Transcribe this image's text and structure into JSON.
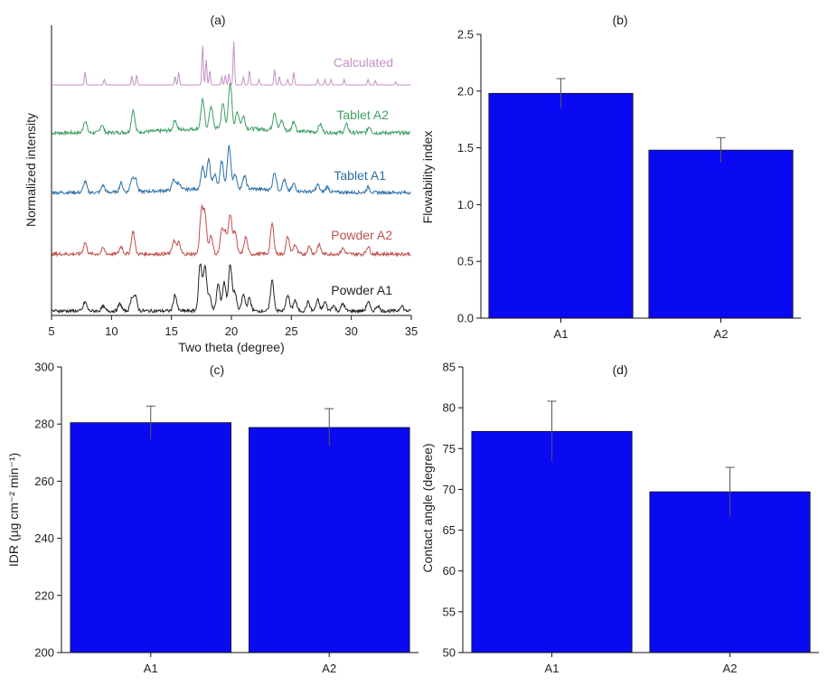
{
  "chart_data": [
    {
      "panel_label": "(a)",
      "type": "line",
      "xlabel": "Two theta (degree)",
      "ylabel": "Normalized intensity",
      "xlim": [
        5,
        35
      ],
      "xticks": [
        5,
        10,
        15,
        20,
        25,
        30,
        35
      ],
      "series": [
        {
          "name": "Calculated",
          "color": "#c48fc4",
          "peaks": [
            [
              7.8,
              0.45
            ],
            [
              9.4,
              0.2
            ],
            [
              11.7,
              0.3
            ],
            [
              12.1,
              0.35
            ],
            [
              15.3,
              0.3
            ],
            [
              15.6,
              0.45
            ],
            [
              17.6,
              1.4
            ],
            [
              17.9,
              0.9
            ],
            [
              18.2,
              0.5
            ],
            [
              19.2,
              0.3
            ],
            [
              19.5,
              0.35
            ],
            [
              19.8,
              0.4
            ],
            [
              20.2,
              1.55
            ],
            [
              21.0,
              0.3
            ],
            [
              21.5,
              0.5
            ],
            [
              22.3,
              0.2
            ],
            [
              23.6,
              0.55
            ],
            [
              24.0,
              0.3
            ],
            [
              24.7,
              0.2
            ],
            [
              25.2,
              0.45
            ],
            [
              27.2,
              0.2
            ],
            [
              27.8,
              0.2
            ],
            [
              28.3,
              0.2
            ],
            [
              29.4,
              0.2
            ],
            [
              31.4,
              0.2
            ],
            [
              32.0,
              0.15
            ],
            [
              33.7,
              0.12
            ]
          ]
        },
        {
          "name": "Tablet A2",
          "color": "#3f9e63",
          "peaks": [
            [
              7.8,
              0.3
            ],
            [
              9.2,
              0.2
            ],
            [
              11.8,
              0.55
            ],
            [
              15.3,
              0.25
            ],
            [
              17.6,
              0.7
            ],
            [
              18.3,
              0.55
            ],
            [
              19.3,
              0.6
            ],
            [
              19.9,
              1.1
            ],
            [
              20.5,
              0.4
            ],
            [
              21.0,
              0.3
            ],
            [
              23.6,
              0.45
            ],
            [
              24.2,
              0.25
            ],
            [
              25.2,
              0.25
            ],
            [
              27.4,
              0.2
            ],
            [
              29.6,
              0.2
            ],
            [
              31.5,
              0.15
            ]
          ]
        },
        {
          "name": "Tablet A1",
          "color": "#2c6fa8",
          "peaks": [
            [
              7.8,
              0.3
            ],
            [
              9.3,
              0.2
            ],
            [
              10.8,
              0.25
            ],
            [
              11.7,
              0.35
            ],
            [
              12.0,
              0.35
            ],
            [
              15.2,
              0.3
            ],
            [
              15.6,
              0.2
            ],
            [
              17.6,
              0.6
            ],
            [
              18.1,
              0.8
            ],
            [
              18.6,
              0.4
            ],
            [
              19.2,
              0.75
            ],
            [
              19.8,
              1.2
            ],
            [
              20.3,
              0.4
            ],
            [
              21.1,
              0.35
            ],
            [
              23.6,
              0.5
            ],
            [
              24.4,
              0.3
            ],
            [
              25.2,
              0.2
            ],
            [
              27.2,
              0.2
            ],
            [
              28.0,
              0.15
            ],
            [
              31.4,
              0.15
            ]
          ]
        },
        {
          "name": "Powder A2",
          "color": "#c0504d",
          "peaks": [
            [
              7.8,
              0.3
            ],
            [
              9.3,
              0.15
            ],
            [
              10.8,
              0.2
            ],
            [
              11.8,
              0.6
            ],
            [
              15.2,
              0.35
            ],
            [
              15.6,
              0.3
            ],
            [
              17.5,
              1.1
            ],
            [
              17.8,
              1.0
            ],
            [
              18.3,
              0.5
            ],
            [
              19.2,
              0.6
            ],
            [
              19.5,
              0.55
            ],
            [
              19.9,
              1.05
            ],
            [
              20.3,
              0.6
            ],
            [
              21.2,
              0.45
            ],
            [
              23.4,
              0.8
            ],
            [
              24.7,
              0.45
            ],
            [
              25.3,
              0.25
            ],
            [
              26.5,
              0.2
            ],
            [
              27.3,
              0.25
            ],
            [
              29.3,
              0.15
            ],
            [
              31.4,
              0.2
            ]
          ]
        },
        {
          "name": "Powder A1",
          "color": "#222222",
          "peaks": [
            [
              7.8,
              0.25
            ],
            [
              9.3,
              0.12
            ],
            [
              10.7,
              0.2
            ],
            [
              11.7,
              0.35
            ],
            [
              12.0,
              0.38
            ],
            [
              15.3,
              0.45
            ],
            [
              17.4,
              1.3
            ],
            [
              17.8,
              1.25
            ],
            [
              18.2,
              0.4
            ],
            [
              18.9,
              0.75
            ],
            [
              19.4,
              0.8
            ],
            [
              19.9,
              1.3
            ],
            [
              20.3,
              0.5
            ],
            [
              21.0,
              0.45
            ],
            [
              21.5,
              0.35
            ],
            [
              23.4,
              0.85
            ],
            [
              24.7,
              0.45
            ],
            [
              25.3,
              0.3
            ],
            [
              26.4,
              0.25
            ],
            [
              27.2,
              0.3
            ],
            [
              27.8,
              0.25
            ],
            [
              28.5,
              0.15
            ],
            [
              29.3,
              0.2
            ],
            [
              31.4,
              0.25
            ],
            [
              32.2,
              0.15
            ],
            [
              34.2,
              0.15
            ]
          ]
        }
      ]
    },
    {
      "panel_label": "(b)",
      "type": "bar",
      "categories": [
        "A1",
        "A2"
      ],
      "values": [
        1.98,
        1.48
      ],
      "errors": [
        0.13,
        0.11
      ],
      "ylabel": "Flowability index",
      "xlabel": "",
      "ylim": [
        0.0,
        2.5
      ],
      "yticks": [
        "0.0",
        "0.5",
        "1.0",
        "1.5",
        "2.0",
        "2.5"
      ],
      "bar_color": "#0a0af2"
    },
    {
      "panel_label": "(c)",
      "type": "bar",
      "categories": [
        "A1",
        "A2"
      ],
      "values": [
        280.5,
        278.8
      ],
      "errors": [
        5.8,
        6.6
      ],
      "ylabel": "IDR (µg cm⁻² min⁻¹)",
      "xlabel": "",
      "ylim": [
        200,
        300
      ],
      "yticks": [
        "200",
        "220",
        "240",
        "260",
        "280",
        "300"
      ],
      "bar_color": "#0a0af2"
    },
    {
      "panel_label": "(d)",
      "type": "bar",
      "categories": [
        "A1",
        "A2"
      ],
      "values": [
        77.1,
        69.7
      ],
      "errors": [
        3.7,
        3.0
      ],
      "ylabel": "Contact angle (degree)",
      "xlabel": "",
      "ylim": [
        50,
        85
      ],
      "yticks": [
        "50",
        "55",
        "60",
        "65",
        "70",
        "75",
        "80",
        "85"
      ],
      "bar_color": "#0a0af2"
    }
  ]
}
